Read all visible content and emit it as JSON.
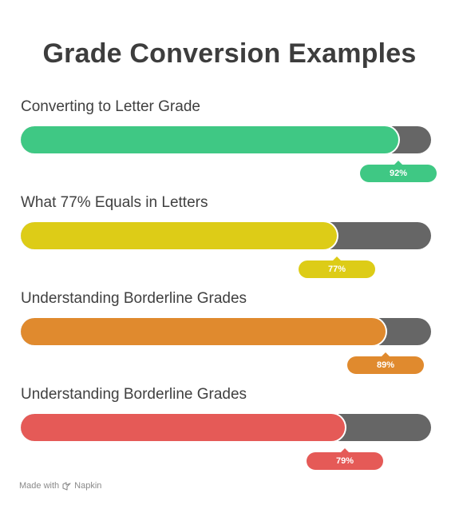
{
  "chart_data": {
    "type": "bar",
    "title": "Grade Conversion Examples",
    "categories": [
      "Converting to Letter Grade",
      "What 77% Equals in Letters",
      "Understanding Borderline Grades",
      "Understanding Borderline Grades"
    ],
    "values": [
      92,
      77,
      89,
      79
    ],
    "value_labels": [
      "92%",
      "77%",
      "89%",
      "79%"
    ],
    "colors": [
      "#3fc884",
      "#ddcc17",
      "#e08a2e",
      "#e55a57"
    ],
    "track_color": "#666666",
    "ylim": [
      0,
      100
    ],
    "grid": false
  },
  "footer": {
    "made_with": "Made with",
    "brand": "Napkin"
  }
}
